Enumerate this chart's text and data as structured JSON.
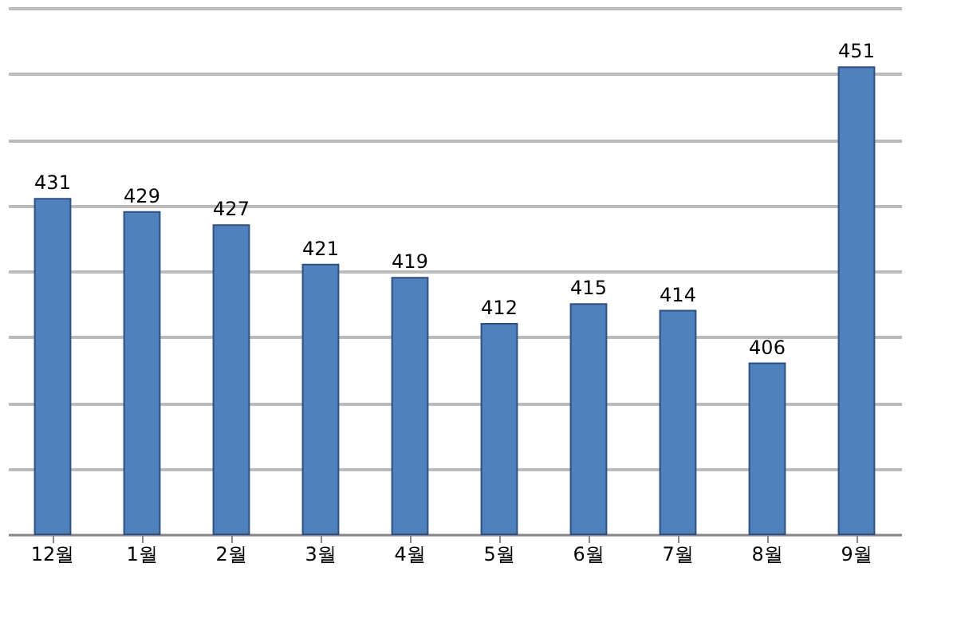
{
  "chart_data": {
    "type": "bar",
    "categories": [
      "12월",
      "1월",
      "2월",
      "3월",
      "4월",
      "5월",
      "6월",
      "7월",
      "8월",
      "9월"
    ],
    "values": [
      431,
      429,
      427,
      421,
      419,
      412,
      415,
      414,
      406,
      451
    ],
    "color": "#4f81bd",
    "ylim": [
      380,
      460
    ],
    "yticks": [
      380,
      390,
      400,
      410,
      420,
      430,
      440,
      450,
      460
    ],
    "tick_labels": "x",
    "grid": "y",
    "data_labels": true
  }
}
